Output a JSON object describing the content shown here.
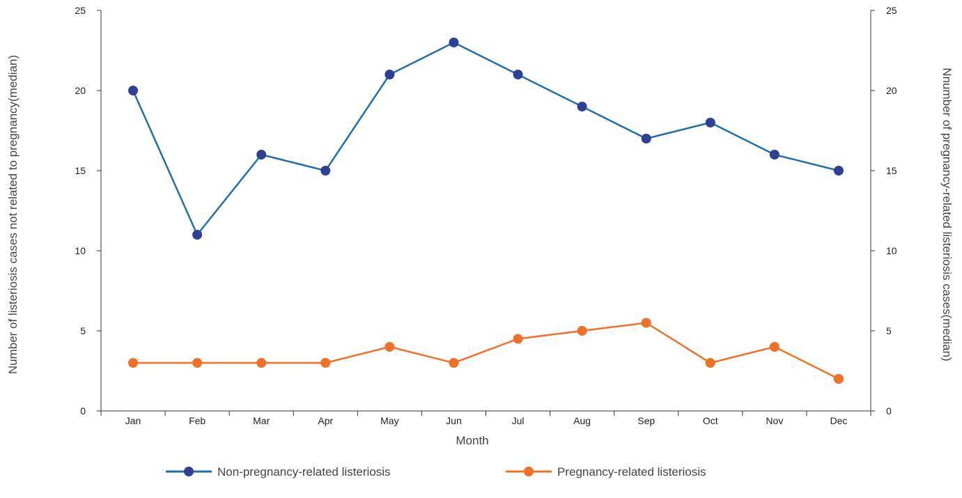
{
  "chart_data": {
    "type": "line",
    "categories": [
      "Jan",
      "Feb",
      "Mar",
      "Apr",
      "May",
      "Jun",
      "Jul",
      "Aug",
      "Sep",
      "Oct",
      "Nov",
      "Dec"
    ],
    "series": [
      {
        "name": "Non-pregnancy-related listeriosis",
        "values": [
          20,
          11,
          16,
          15,
          21,
          23,
          21,
          19,
          17,
          18,
          16,
          15
        ],
        "axis": "left",
        "color": "#1f6fad",
        "marker_color": "#2e3f96"
      },
      {
        "name": "Pregnancy-related listeriosis",
        "values": [
          3,
          3,
          3,
          3,
          4,
          3,
          4.5,
          5,
          5.5,
          3,
          4,
          2
        ],
        "axis": "right",
        "color": "#f07025",
        "marker_color": "#f07025"
      }
    ],
    "xlabel": "Month",
    "ylabel_left": "Number of listeriosis cases not related to pregnancy(median)",
    "ylabel_right": "Nnumber of pregnancy-related listeriosis cases(median)",
    "ylim_left": [
      0,
      25
    ],
    "ylim_right": [
      0,
      25
    ],
    "yticks": [
      0,
      5,
      10,
      15,
      20,
      25
    ],
    "grid": false,
    "legend_position": "bottom"
  }
}
